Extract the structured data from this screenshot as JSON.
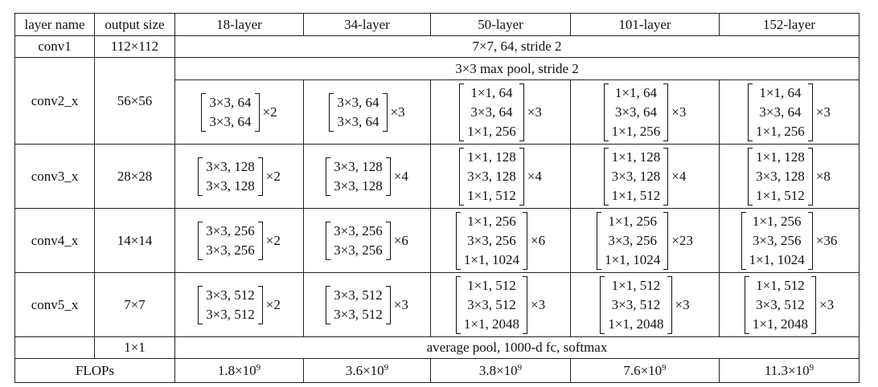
{
  "table": {
    "headers": [
      "layer name",
      "output size",
      "18-layer",
      "34-layer",
      "50-layer",
      "101-layer",
      "152-layer"
    ],
    "conv1": {
      "name": "conv1",
      "size": "112×112",
      "spec": "7×7, 64, stride 2"
    },
    "pool": {
      "spec": "3×3 max pool, stride 2"
    },
    "stages": [
      {
        "name": "conv2_x",
        "size": "56×56",
        "blocks": [
          {
            "lines": [
              "3×3, 64",
              "3×3, 64"
            ],
            "repeat": "×2"
          },
          {
            "lines": [
              "3×3, 64",
              "3×3, 64"
            ],
            "repeat": "×3"
          },
          {
            "lines": [
              "1×1, 64",
              "3×3, 64",
              "1×1, 256"
            ],
            "repeat": "×3"
          },
          {
            "lines": [
              "1×1, 64",
              "3×3, 64",
              "1×1, 256"
            ],
            "repeat": "×3"
          },
          {
            "lines": [
              "1×1, 64",
              "3×3, 64",
              "1×1, 256"
            ],
            "repeat": "×3"
          }
        ]
      },
      {
        "name": "conv3_x",
        "size": "28×28",
        "blocks": [
          {
            "lines": [
              "3×3, 128",
              "3×3, 128"
            ],
            "repeat": "×2"
          },
          {
            "lines": [
              "3×3, 128",
              "3×3, 128"
            ],
            "repeat": "×4"
          },
          {
            "lines": [
              "1×1, 128",
              "3×3, 128",
              "1×1, 512"
            ],
            "repeat": "×4"
          },
          {
            "lines": [
              "1×1, 128",
              "3×3, 128",
              "1×1, 512"
            ],
            "repeat": "×4"
          },
          {
            "lines": [
              "1×1, 128",
              "3×3, 128",
              "1×1, 512"
            ],
            "repeat": "×8"
          }
        ]
      },
      {
        "name": "conv4_x",
        "size": "14×14",
        "blocks": [
          {
            "lines": [
              "3×3, 256",
              "3×3, 256"
            ],
            "repeat": "×2"
          },
          {
            "lines": [
              "3×3, 256",
              "3×3, 256"
            ],
            "repeat": "×6"
          },
          {
            "lines": [
              "1×1, 256",
              "3×3, 256",
              "1×1, 1024"
            ],
            "repeat": "×6"
          },
          {
            "lines": [
              "1×1, 256",
              "3×3, 256",
              "1×1, 1024"
            ],
            "repeat": "×23"
          },
          {
            "lines": [
              "1×1, 256",
              "3×3, 256",
              "1×1, 1024"
            ],
            "repeat": "×36"
          }
        ]
      },
      {
        "name": "conv5_x",
        "size": "7×7",
        "blocks": [
          {
            "lines": [
              "3×3, 512",
              "3×3, 512"
            ],
            "repeat": "×2"
          },
          {
            "lines": [
              "3×3, 512",
              "3×3, 512"
            ],
            "repeat": "×3"
          },
          {
            "lines": [
              "1×1, 512",
              "3×3, 512",
              "1×1, 2048"
            ],
            "repeat": "×3"
          },
          {
            "lines": [
              "1×1, 512",
              "3×3, 512",
              "1×1, 2048"
            ],
            "repeat": "×3"
          },
          {
            "lines": [
              "1×1, 512",
              "3×3, 512",
              "1×1, 2048"
            ],
            "repeat": "×3"
          }
        ]
      }
    ],
    "avgpool": {
      "size": "1×1",
      "spec": "average pool, 1000-d fc, softmax"
    },
    "flops": {
      "label": "FLOPs",
      "values": [
        {
          "mantissa": "1.8×10",
          "exp": "9"
        },
        {
          "mantissa": "3.6×10",
          "exp": "9"
        },
        {
          "mantissa": "3.8×10",
          "exp": "9"
        },
        {
          "mantissa": "7.6×10",
          "exp": "9"
        },
        {
          "mantissa": "11.3×10",
          "exp": "9"
        }
      ]
    }
  }
}
